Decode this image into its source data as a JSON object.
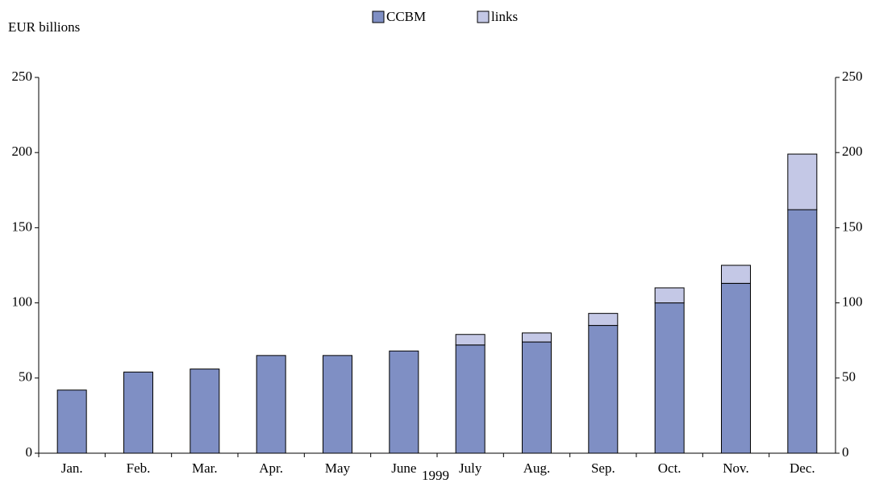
{
  "chart_data": {
    "type": "stacked-bar",
    "y_label": "EUR billions",
    "x_label": "1999",
    "categories": [
      "Jan.",
      "Feb.",
      "Mar.",
      "Apr.",
      "May",
      "June",
      "July",
      "Aug.",
      "Sep.",
      "Oct.",
      "Nov.",
      "Dec."
    ],
    "series": [
      {
        "name": "CCBM",
        "color": "#7f8fc4",
        "values": [
          42,
          54,
          56,
          65,
          65,
          68,
          72,
          74,
          85,
          100,
          113,
          162
        ]
      },
      {
        "name": "links",
        "color": "#c4c8e6",
        "values": [
          null,
          null,
          null,
          null,
          null,
          null,
          7,
          6,
          8,
          10,
          12,
          37
        ]
      }
    ],
    "ylim": [
      0,
      250
    ],
    "yticks": [
      0,
      50,
      100,
      150,
      200,
      250
    ]
  }
}
